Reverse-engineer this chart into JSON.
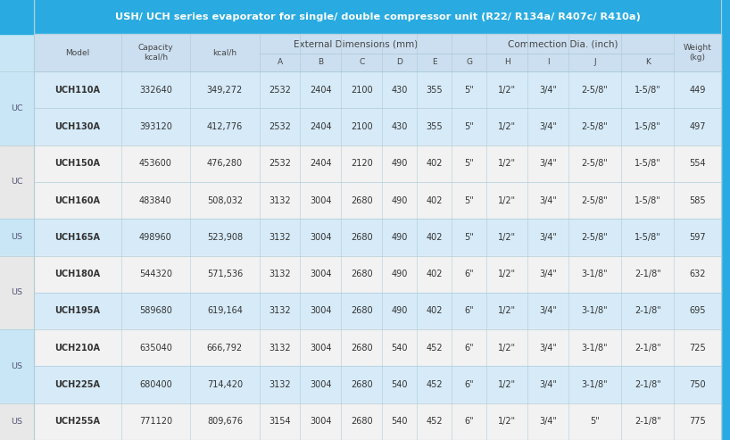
{
  "title": "USH/ UCH series evaporator for single/ double compressor unit (R22/ R134a/ R407c/ R410a)",
  "title_bg": "#29ABE2",
  "title_color": "#FFFFFF",
  "header_bg": "#CCDFF0",
  "header_color": "#444444",
  "left_bar_color": "#29ABE2",
  "left_bar_bg_blue": "#C8E6F5",
  "left_bar_bg_white": "#E8E8E8",
  "row_bg_blue": "#D6EAF8",
  "row_bg_white": "#F2F2F2",
  "right_bar_color": "#29ABE2",
  "divider_color": "#B0CDD8",
  "col_labels": [
    "Model",
    "Capacity\nkcal/h",
    "kcal/h",
    "A",
    "B",
    "C",
    "D",
    "E",
    "G",
    "H",
    "I",
    "J",
    "K",
    "Weight\n(kg)"
  ],
  "col_widths_rel": [
    1.45,
    1.15,
    1.15,
    0.68,
    0.68,
    0.68,
    0.58,
    0.58,
    0.58,
    0.68,
    0.68,
    0.88,
    0.88,
    0.78
  ],
  "group1_label": "External Dimensions (mm)",
  "group1_cols": [
    3,
    7
  ],
  "group2_label": "Commection Dia. (inch)",
  "group2_cols": [
    8,
    12
  ],
  "rows": [
    [
      "UCH110A",
      "332640",
      "349,272",
      "2532",
      "2404",
      "2100",
      "430",
      "355",
      "5\"",
      "1/2\"",
      "3/4\"",
      "2-5/8\"",
      "1-5/8\"",
      "449"
    ],
    [
      "UCH130A",
      "393120",
      "412,776",
      "2532",
      "2404",
      "2100",
      "430",
      "355",
      "5\"",
      "1/2\"",
      "3/4\"",
      "2-5/8\"",
      "1-5/8\"",
      "497"
    ],
    [
      "UCH150A",
      "453600",
      "476,280",
      "2532",
      "2404",
      "2120",
      "490",
      "402",
      "5\"",
      "1/2\"",
      "3/4\"",
      "2-5/8\"",
      "1-5/8\"",
      "554"
    ],
    [
      "UCH160A",
      "483840",
      "508,032",
      "3132",
      "3004",
      "2680",
      "490",
      "402",
      "5\"",
      "1/2\"",
      "3/4\"",
      "2-5/8\"",
      "1-5/8\"",
      "585"
    ],
    [
      "UCH165A",
      "498960",
      "523,908",
      "3132",
      "3004",
      "2680",
      "490",
      "402",
      "5\"",
      "1/2\"",
      "3/4\"",
      "2-5/8\"",
      "1-5/8\"",
      "597"
    ],
    [
      "UCH180A",
      "544320",
      "571,536",
      "3132",
      "3004",
      "2680",
      "490",
      "402",
      "6\"",
      "1/2\"",
      "3/4\"",
      "3-1/8\"",
      "2-1/8\"",
      "632"
    ],
    [
      "UCH195A",
      "589680",
      "619,164",
      "3132",
      "3004",
      "2680",
      "490",
      "402",
      "6\"",
      "1/2\"",
      "3/4\"",
      "3-1/8\"",
      "2-1/8\"",
      "695"
    ],
    [
      "UCH210A",
      "635040",
      "666,792",
      "3132",
      "3004",
      "2680",
      "540",
      "452",
      "6\"",
      "1/2\"",
      "3/4\"",
      "3-1/8\"",
      "2-1/8\"",
      "725"
    ],
    [
      "UCH225A",
      "680400",
      "714,420",
      "3132",
      "3004",
      "2680",
      "540",
      "452",
      "6\"",
      "1/2\"",
      "3/4\"",
      "3-1/8\"",
      "2-1/8\"",
      "750"
    ],
    [
      "UCH255A",
      "771120",
      "809,676",
      "3154",
      "3004",
      "2680",
      "540",
      "452",
      "6\"",
      "1/2\"",
      "3/4\"",
      "5\"",
      "2-1/8\"",
      "775"
    ]
  ],
  "left_groups": [
    {
      "label": "",
      "rows": [
        0,
        1
      ],
      "bg": "blue"
    },
    {
      "label": "UC",
      "rows": [
        0,
        1
      ],
      "bg": "blue"
    },
    {
      "label": "UC",
      "rows": [
        2,
        3
      ],
      "bg": "white"
    },
    {
      "label": "US",
      "rows": [
        4,
        4
      ],
      "bg": "blue"
    },
    {
      "label": "US",
      "rows": [
        5,
        6
      ],
      "bg": "white"
    },
    {
      "label": "US",
      "rows": [
        7,
        8
      ],
      "bg": "blue"
    },
    {
      "label": "US",
      "rows": [
        9,
        9
      ],
      "bg": "white"
    }
  ],
  "row_bgs": [
    "blue",
    "blue",
    "white",
    "white",
    "blue",
    "white",
    "blue",
    "white",
    "blue",
    "white"
  ],
  "figsize": [
    8.18,
    4.93
  ],
  "dpi": 100
}
